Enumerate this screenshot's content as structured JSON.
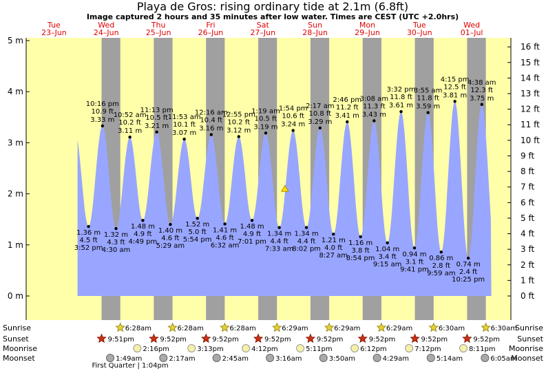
{
  "title": "Playa de Gros: rising  ordinary tide at 2.1m (6.8ft)",
  "subtitle": "Image captured 2 hours and 35 minutes after low water. Times are CEST (UTC +2.0hrs)",
  "colors": {
    "day_bg": "#ffffaa",
    "night_bg": "#a0a0a0",
    "water": "#99a6ff",
    "day_label": "#e00000"
  },
  "days": [
    {
      "dow": "Tue",
      "date": "23–Jun"
    },
    {
      "dow": "Wed",
      "date": "24–Jun"
    },
    {
      "dow": "Thu",
      "date": "25–Jun"
    },
    {
      "dow": "Fri",
      "date": "26–Jun"
    },
    {
      "dow": "Sat",
      "date": "27–Jun"
    },
    {
      "dow": "Sun",
      "date": "28–Jun"
    },
    {
      "dow": "Mon",
      "date": "29–Jun"
    },
    {
      "dow": "Tue",
      "date": "30–Jun"
    },
    {
      "dow": "Wed",
      "date": "01–Jul"
    }
  ],
  "chart_data": {
    "type": "area",
    "x_unit": "hours from 00:00 Tue 23-Jun (CEST)",
    "ylim_m": [
      -0.45,
      5.15
    ],
    "ylim_ft": [
      -1.5,
      16.9
    ],
    "left_ticks": [
      "0 m",
      "1 m",
      "2 m",
      "3 m",
      "4 m",
      "5 m"
    ],
    "right_ticks": [
      "0 ft",
      "1 ft",
      "2 ft",
      "3 ft",
      "4 ft",
      "5 ft",
      "6 ft",
      "7 ft",
      "8 ft",
      "9 ft",
      "10 ft",
      "11 ft",
      "12 ft",
      "13 ft",
      "14 ft",
      "15 ft",
      "16 ft"
    ],
    "grid": false,
    "current": {
      "time": "2.1m",
      "level_m": 2.1
    },
    "tides": [
      {
        "h": 15.87,
        "m": 1.36,
        "type": "low",
        "time": "3:52 pm",
        "ft": "4.5 ft",
        "mtxt": "1.36 m"
      },
      {
        "h": 22.27,
        "m": 3.33,
        "type": "high",
        "time": "10:16 pm",
        "ft": "10.9 ft",
        "mtxt": "3.33 m"
      },
      {
        "h": 28.5,
        "m": 1.32,
        "type": "low",
        "time": "4:30 am",
        "ft": "4.3 ft",
        "mtxt": "1.32 m"
      },
      {
        "h": 34.87,
        "m": 3.11,
        "type": "high",
        "time": "10:52 am",
        "ft": "10.2 ft",
        "mtxt": "3.11 m"
      },
      {
        "h": 40.82,
        "m": 1.48,
        "type": "low",
        "time": "4:49 pm",
        "ft": "4.9 ft",
        "mtxt": "1.48 m"
      },
      {
        "h": 47.22,
        "m": 3.21,
        "type": "high",
        "time": "11:13 pm",
        "ft": "10.5 ft",
        "mtxt": "3.21 m"
      },
      {
        "h": 53.48,
        "m": 1.4,
        "type": "low",
        "time": "5:29 am",
        "ft": "4.6 ft",
        "mtxt": "1.40 m"
      },
      {
        "h": 59.88,
        "m": 3.07,
        "type": "high",
        "time": "11:53 am",
        "ft": "10.1 ft",
        "mtxt": "3.07 m"
      },
      {
        "h": 65.9,
        "m": 1.52,
        "type": "low",
        "time": "5:54 pm",
        "ft": "5.0 ft",
        "mtxt": "1.52 m"
      },
      {
        "h": 72.27,
        "m": 3.16,
        "type": "high",
        "time": "12:16 am",
        "ft": "10.4 ft",
        "mtxt": "3.16 m"
      },
      {
        "h": 78.53,
        "m": 1.41,
        "type": "low",
        "time": "6:32 am",
        "ft": "4.6 ft",
        "mtxt": "1.41 m"
      },
      {
        "h": 84.92,
        "m": 3.12,
        "type": "high",
        "time": "12:55 pm",
        "ft": "10.2 ft",
        "mtxt": "3.12 m"
      },
      {
        "h": 91.02,
        "m": 1.48,
        "type": "low",
        "time": "7:01 pm",
        "ft": "4.9 ft",
        "mtxt": "1.48 m"
      },
      {
        "h": 97.32,
        "m": 3.19,
        "type": "high",
        "time": "1:19 am",
        "ft": "10.5 ft",
        "mtxt": "3.19 m"
      },
      {
        "h": 103.55,
        "m": 1.34,
        "type": "low",
        "time": "7:33 am",
        "ft": "4.4 ft",
        "mtxt": "1.34 m"
      },
      {
        "h": 109.9,
        "m": 3.24,
        "type": "high",
        "time": "1:54 pm",
        "ft": "10.6 ft",
        "mtxt": "3.24 m"
      },
      {
        "h": 116.03,
        "m": 1.34,
        "type": "low",
        "time": "8:02 pm",
        "ft": "4.4 ft",
        "mtxt": "1.34 m"
      },
      {
        "h": 122.28,
        "m": 3.29,
        "type": "high",
        "time": "2:17 am",
        "ft": "10.8 ft",
        "mtxt": "3.29 m"
      },
      {
        "h": 128.45,
        "m": 1.21,
        "type": "low",
        "time": "8:27 am",
        "ft": "4.0 ft",
        "mtxt": "1.21 m"
      },
      {
        "h": 134.77,
        "m": 3.41,
        "type": "high",
        "time": "2:46 pm",
        "ft": "11.2 ft",
        "mtxt": "3.41 m"
      },
      {
        "h": 140.9,
        "m": 1.16,
        "type": "low",
        "time": "8:54 pm",
        "ft": "3.8 ft",
        "mtxt": "1.16 m"
      },
      {
        "h": 147.13,
        "m": 3.43,
        "type": "high",
        "time": "3:08 am",
        "ft": "11.3 ft",
        "mtxt": "3.43 m"
      },
      {
        "h": 153.25,
        "m": 1.04,
        "type": "low",
        "time": "9:15 am",
        "ft": "3.4 ft",
        "mtxt": "1.04 m"
      },
      {
        "h": 159.53,
        "m": 3.61,
        "type": "high",
        "time": "3:32 pm",
        "ft": "11.8 ft",
        "mtxt": "3.61 m"
      },
      {
        "h": 165.68,
        "m": 0.94,
        "type": "low",
        "time": "9:41 pm",
        "ft": "3.1 ft",
        "mtxt": "0.94 m"
      },
      {
        "h": 171.92,
        "m": 3.59,
        "type": "high",
        "time": "3:55 am",
        "ft": "11.8 ft",
        "mtxt": "3.59 m"
      },
      {
        "h": 177.98,
        "m": 0.86,
        "type": "low",
        "time": "9:59 am",
        "ft": "2.8 ft",
        "mtxt": "0.86 m"
      },
      {
        "h": 184.25,
        "m": 3.81,
        "type": "high",
        "time": "4:15 pm",
        "ft": "12.5 ft",
        "mtxt": "3.81 m"
      },
      {
        "h": 190.42,
        "m": 0.74,
        "type": "low",
        "time": "10:25 pm",
        "ft": "2.4 ft",
        "mtxt": "0.74 m"
      },
      {
        "h": 196.63,
        "m": 3.75,
        "type": "high",
        "time": "4:38 am",
        "ft": "12.3 ft",
        "mtxt": "3.75 m"
      }
    ]
  },
  "rows": {
    "sunrise_label": "Sunrise",
    "sunset_label": "Sunset",
    "moonrise_label": "Moonrise",
    "moonset_label": "Moonset",
    "sunrise": [
      {
        "h": 30.47,
        "t": "6:28am"
      },
      {
        "h": 54.47,
        "t": "6:28am"
      },
      {
        "h": 78.47,
        "t": "6:28am"
      },
      {
        "h": 102.48,
        "t": "6:29am"
      },
      {
        "h": 126.48,
        "t": "6:29am"
      },
      {
        "h": 150.48,
        "t": "6:29am"
      },
      {
        "h": 174.5,
        "t": "6:30am"
      },
      {
        "h": 198.5,
        "t": "6:30am"
      }
    ],
    "sunset": [
      {
        "h": 21.85,
        "t": "9:51pm"
      },
      {
        "h": 45.87,
        "t": "9:52pm"
      },
      {
        "h": 69.87,
        "t": "9:52pm"
      },
      {
        "h": 93.87,
        "t": "9:52pm"
      },
      {
        "h": 117.87,
        "t": "9:52pm"
      },
      {
        "h": 141.87,
        "t": "9:52pm"
      },
      {
        "h": 165.87,
        "t": "9:52pm"
      },
      {
        "h": 189.87,
        "t": "9:52pm"
      }
    ],
    "moonrise": [
      {
        "h": 38.27,
        "t": "2:16pm"
      },
      {
        "h": 63.22,
        "t": "3:13pm"
      },
      {
        "h": 88.2,
        "t": "4:12pm"
      },
      {
        "h": 113.18,
        "t": "5:11pm"
      },
      {
        "h": 138.2,
        "t": "6:12pm"
      },
      {
        "h": 163.2,
        "t": "7:12pm"
      },
      {
        "h": 188.18,
        "t": "8:11pm"
      }
    ],
    "moonset": [
      {
        "h": 25.82,
        "t": "1:49am"
      },
      {
        "h": 50.28,
        "t": "2:17am"
      },
      {
        "h": 74.75,
        "t": "2:45am"
      },
      {
        "h": 99.27,
        "t": "3:16am"
      },
      {
        "h": 123.83,
        "t": "3:50am"
      },
      {
        "h": 148.48,
        "t": "4:29am"
      },
      {
        "h": 173.23,
        "t": "5:14am"
      },
      {
        "h": 198.08,
        "t": "6:05am"
      }
    ],
    "moon_phase": "First Quarter | 1:04pm"
  }
}
